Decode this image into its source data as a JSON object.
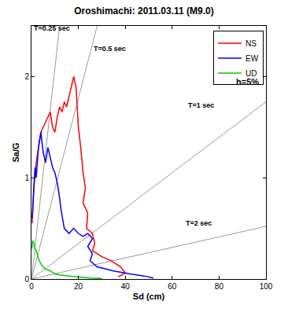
{
  "chart_data": {
    "type": "line",
    "title": "Oroshimachi: 2011.03.11 (M9.0)",
    "x_label": "Sd (cm)",
    "y_label": "Sa/G",
    "xlim": [
      0,
      100
    ],
    "ylim": [
      0,
      2.5
    ],
    "xticks": [
      0,
      20,
      40,
      60,
      80,
      100
    ],
    "yticks": [
      0,
      1,
      2
    ],
    "grid": false,
    "legend": "top right",
    "annotations": [
      "h=5%"
    ],
    "series": [
      {
        "name": "NS",
        "color": "#ff0000",
        "x": [
          0.3,
          1,
          2,
          3,
          4,
          5,
          6,
          7,
          8,
          9,
          10,
          11,
          12,
          13,
          14,
          15,
          16,
          17,
          18,
          19,
          19.5,
          20,
          21,
          22,
          23,
          22,
          24,
          23.5,
          26,
          27,
          26,
          30,
          34,
          38,
          40,
          37
        ],
        "values": [
          0.55,
          0.9,
          1.15,
          1.3,
          1.45,
          1.5,
          1.55,
          1.6,
          1.65,
          1.5,
          1.45,
          1.6,
          1.7,
          1.65,
          1.75,
          1.7,
          1.8,
          1.9,
          2.0,
          1.9,
          1.7,
          1.5,
          1.3,
          1.05,
          0.9,
          0.75,
          0.65,
          0.5,
          0.45,
          0.35,
          0.28,
          0.22,
          0.18,
          0.12,
          0.06,
          0.02
        ]
      },
      {
        "name": "EW",
        "color": "#0000ff",
        "x": [
          0.3,
          1,
          1.5,
          2,
          3,
          4,
          5,
          6,
          7,
          8,
          9,
          10,
          11,
          12,
          12.5,
          14,
          16,
          18,
          20,
          22,
          24,
          26,
          24,
          26,
          25,
          28,
          35,
          42,
          48,
          52
        ],
        "values": [
          0.6,
          0.9,
          1.1,
          1.0,
          1.3,
          1.45,
          1.25,
          1.15,
          1.3,
          1.2,
          1.1,
          1.05,
          0.95,
          0.8,
          0.7,
          0.5,
          0.45,
          0.5,
          0.45,
          0.42,
          0.45,
          0.4,
          0.32,
          0.25,
          0.18,
          0.12,
          0.08,
          0.05,
          0.03,
          0.01
        ]
      },
      {
        "name": "UD",
        "color": "#00cc00",
        "x": [
          0.2,
          0.5,
          1,
          1.5,
          2,
          3,
          4,
          5,
          6,
          8,
          10,
          12,
          16,
          20,
          25,
          30
        ],
        "values": [
          0.3,
          0.38,
          0.35,
          0.3,
          0.28,
          0.2,
          0.15,
          0.12,
          0.1,
          0.08,
          0.05,
          0.04,
          0.03,
          0.02,
          0.01,
          0.005
        ]
      }
    ],
    "reference_lines": [
      {
        "label": "T=0.25 sec",
        "color": "#808080",
        "line_style": "solid",
        "x": [
          0,
          12
        ],
        "values": [
          0,
          2.5
        ]
      },
      {
        "label": "T=0.5 sec",
        "color": "#808080",
        "line_style": "solid",
        "x": [
          0,
          28
        ],
        "values": [
          0,
          2.5
        ]
      },
      {
        "label": "T=1 sec",
        "color": "#808080",
        "line_style": "solid",
        "x": [
          0,
          100
        ],
        "values": [
          0,
          1.75
        ]
      },
      {
        "label": "T=2 sec",
        "color": "#808080",
        "line_style": "solid",
        "x": [
          0,
          100
        ],
        "values": [
          0,
          0.52
        ]
      }
    ]
  }
}
